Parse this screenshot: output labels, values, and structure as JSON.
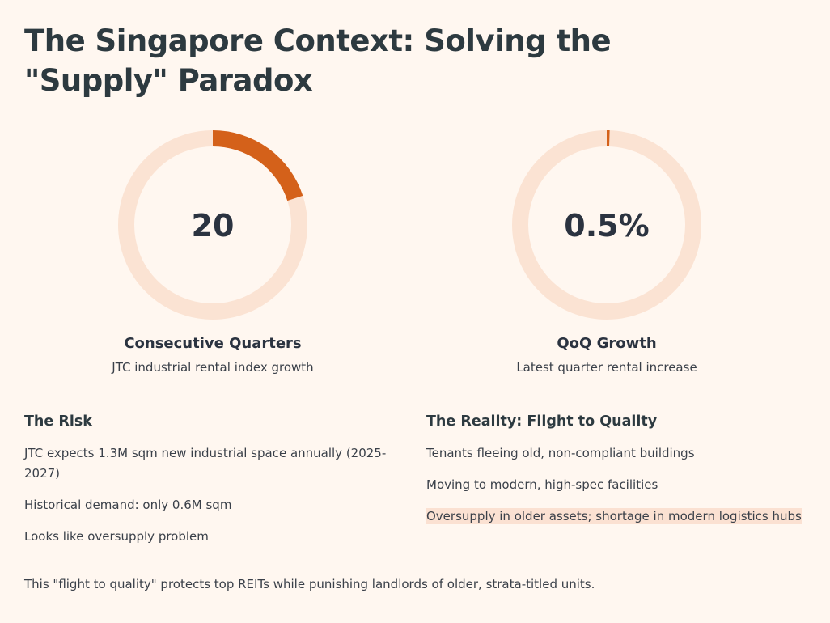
{
  "title": "The Singapore Context: Solving the \"Supply\" Paradox",
  "colors": {
    "accent": "#d4611a",
    "track": "#fbe3d3",
    "background": "#fff7f0"
  },
  "stats": [
    {
      "value": "20",
      "progress": 0.2,
      "label": "Consecutive Quarters",
      "sub": "JTC industrial rental index growth"
    },
    {
      "value": "0.5%",
      "progress": 0.005,
      "label": "QoQ Growth",
      "sub": "Latest quarter rental increase"
    }
  ],
  "risk": {
    "heading": "The Risk",
    "items": [
      "JTC expects 1.3M sqm new industrial space annually (2025-2027)",
      "Historical demand: only 0.6M sqm",
      "Looks like oversupply problem"
    ]
  },
  "reality": {
    "heading": "The Reality: Flight to Quality",
    "items": [
      "Tenants fleeing old, non-compliant buildings",
      "Moving to modern, high-spec facilities",
      "Oversupply in older assets; shortage in modern logistics hubs"
    ]
  },
  "footer": "This \"flight to quality\" protects top REITs while punishing landlords of older, strata-titled units."
}
